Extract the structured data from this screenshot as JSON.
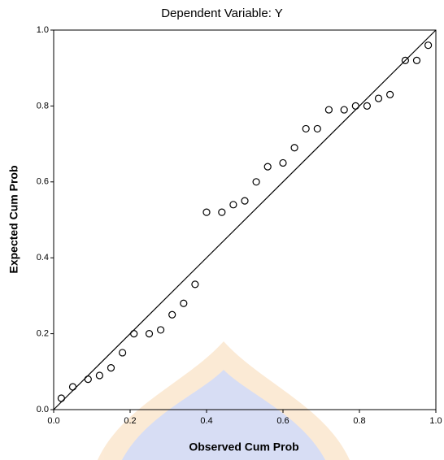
{
  "chart_data": {
    "type": "scatter",
    "title": "Dependent Variable: Y",
    "x_label": "Observed Cum Prob",
    "y_label": "Expected Cum Prob",
    "x": [
      0.02,
      0.05,
      0.09,
      0.12,
      0.15,
      0.18,
      0.21,
      0.25,
      0.28,
      0.31,
      0.34,
      0.37,
      0.4,
      0.44,
      0.47,
      0.5,
      0.53,
      0.56,
      0.6,
      0.63,
      0.66,
      0.69,
      0.72,
      0.76,
      0.79,
      0.82,
      0.85,
      0.88,
      0.92,
      0.95,
      0.98
    ],
    "values": [
      0.03,
      0.06,
      0.08,
      0.09,
      0.11,
      0.15,
      0.2,
      0.2,
      0.21,
      0.25,
      0.28,
      0.33,
      0.52,
      0.52,
      0.54,
      0.55,
      0.6,
      0.64,
      0.65,
      0.69,
      0.74,
      0.74,
      0.79,
      0.79,
      0.8,
      0.8,
      0.82,
      0.83,
      0.92,
      0.92,
      0.96
    ],
    "color": "#000000",
    "xlim": [
      0,
      1
    ],
    "ylim": [
      0,
      1
    ],
    "xticks": [
      {
        "value": 0,
        "label": "0.0"
      },
      0.2,
      0.4,
      0.6,
      0.8,
      {
        "value": 1,
        "label": "1.0"
      }
    ],
    "yticks": [
      {
        "value": 0,
        "label": "0.0"
      },
      0.2,
      0.4,
      0.6,
      0.8,
      {
        "value": 1,
        "label": "1.0"
      }
    ]
  }
}
